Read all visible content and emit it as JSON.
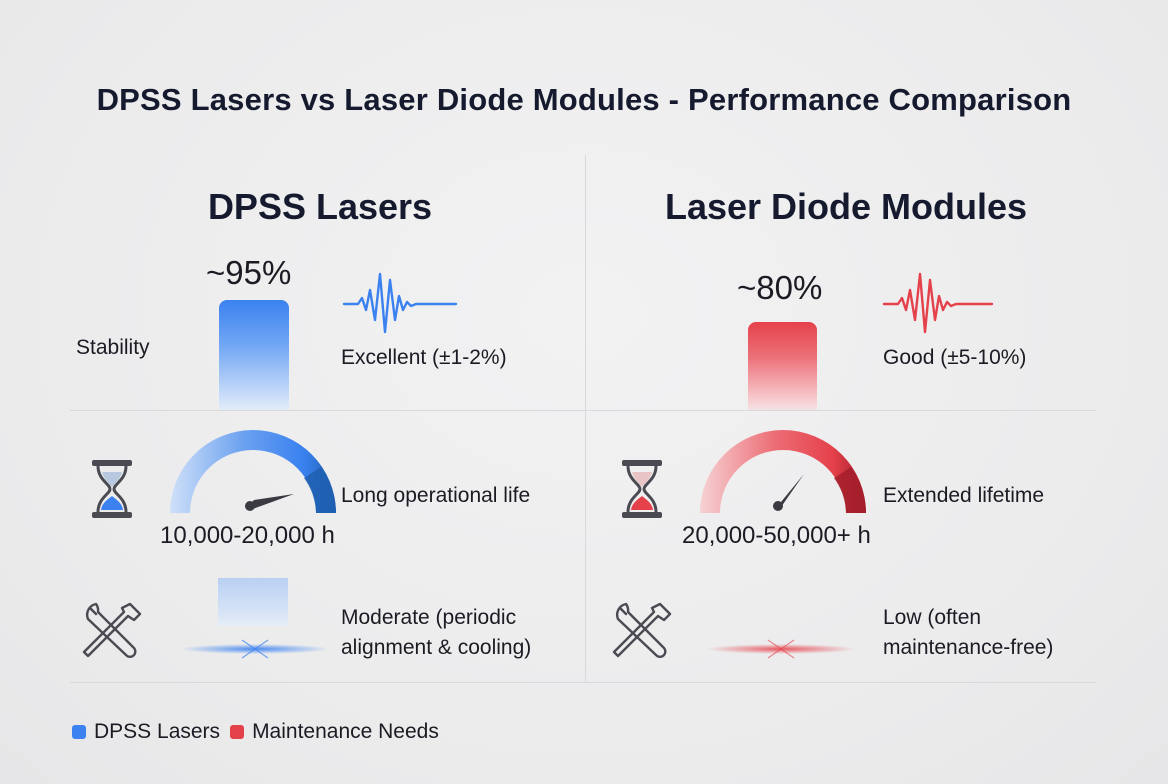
{
  "title": "DPSS Lasers vs Laser Diode Modules - Performance Comparison",
  "colors": {
    "dpss": "#3b82f0",
    "diode": "#e5414b",
    "dpss_dark": "#1f5fb0",
    "diode_dark": "#b02030"
  },
  "columns": [
    {
      "name": "DPSS Lasers",
      "stability_pct": "~95%",
      "stability_value": 95,
      "stability_text": "Excellent (±1-2%)",
      "lifetime_text": "Long operational life",
      "lifetime_range": "10,000-20,000 h",
      "maintenance_line1": "Moderate (periodic",
      "maintenance_line2": "alignment & cooling)"
    },
    {
      "name": "Laser Diode Modules",
      "stability_pct": "~80%",
      "stability_value": 80,
      "stability_text": "Good (±5-10%)",
      "lifetime_text": "Extended lifetime",
      "lifetime_range": "20,000-50,000+ h",
      "maintenance_line1": "Low (often",
      "maintenance_line2": "maintenance-free)"
    }
  ],
  "row_labels": {
    "stability": "Stability"
  },
  "icons": {
    "lifetime": "hourglass-icon",
    "maintenance": "wrench-screwdriver-icon",
    "stability": "waveform-icon"
  },
  "legend": [
    {
      "label": "DPSS Lasers",
      "color": "#3b82f0"
    },
    {
      "label": "Maintenance Needs",
      "color": "#e5414b"
    }
  ],
  "chart_data": {
    "type": "bar",
    "title": "DPSS Lasers vs Laser Diode Modules - Performance Comparison",
    "categories": [
      "DPSS Lasers",
      "Laser Diode Modules"
    ],
    "series": [
      {
        "name": "Stability",
        "values": [
          95,
          80
        ]
      }
    ],
    "ylim": [
      0,
      100
    ],
    "lifetime_hours": [
      {
        "min": 10000,
        "max": 20000
      },
      {
        "min": 20000,
        "max": 50000
      }
    ],
    "legend_position": "bottom-left"
  }
}
